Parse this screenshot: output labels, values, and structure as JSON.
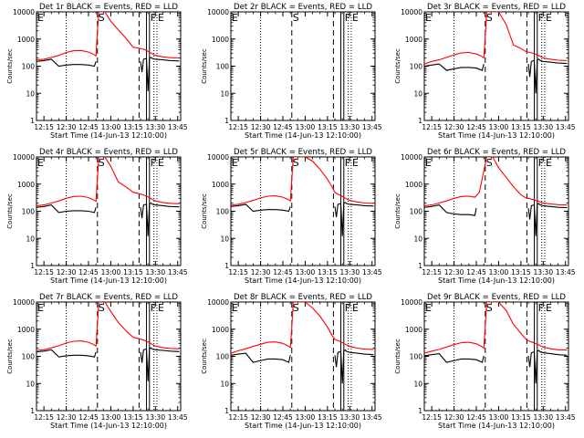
{
  "chart_data": {
    "type": "line",
    "ylabel": "Counts/sec",
    "xlabel": "Start Time (14-Jun-13 12:10:00)",
    "x_unit": "minutes after 12:10:00",
    "xlim": [
      0,
      97
    ],
    "ylim": [
      1,
      10000
    ],
    "yscale": "log",
    "xticks": [
      {
        "v": 5,
        "label": "12:15"
      },
      {
        "v": 20,
        "label": "12:30"
      },
      {
        "v": 35,
        "label": "12:45"
      },
      {
        "v": 50,
        "label": "13:00"
      },
      {
        "v": 65,
        "label": "13:15"
      },
      {
        "v": 80,
        "label": "13:30"
      },
      {
        "v": 95,
        "label": "13:45"
      }
    ],
    "yticks": [
      {
        "v": 1,
        "label": "1"
      },
      {
        "v": 10,
        "label": "10"
      },
      {
        "v": 100,
        "label": "100"
      },
      {
        "v": 1000,
        "label": "1000"
      },
      {
        "v": 10000,
        "label": "10000"
      }
    ],
    "markers": [
      {
        "label": "E",
        "x": 0,
        "style": "dotted"
      },
      {
        "label": "",
        "x": 20,
        "style": "dotted"
      },
      {
        "label": "S",
        "x": 41,
        "style": "dashed"
      },
      {
        "label": "",
        "x": 69,
        "style": "dashed"
      },
      {
        "label": "",
        "x": 74,
        "style": "solid"
      },
      {
        "label": "F",
        "x": 76,
        "style": "solid"
      },
      {
        "label": "",
        "x": 79,
        "style": "dotted"
      },
      {
        "label": "E",
        "x": 81,
        "style": "dotted"
      }
    ],
    "panels": [
      {
        "title": "Det 1r BLACK = Events, RED = LLD",
        "series": [
          {
            "color": "#ff0000",
            "x": [
              0,
              5,
              10,
              15,
              20,
              25,
              30,
              35,
              38,
              40,
              41,
              42,
              44,
              46,
              50,
              55,
              60,
              65,
              68,
              70,
              72,
              74,
              76,
              78,
              80,
              85,
              90,
              96
            ],
            "y": [
              170,
              180,
              210,
              250,
              320,
              370,
              380,
              330,
              280,
              240,
              2000,
              10000,
              10000,
              10000,
              4500,
              2200,
              1100,
              500,
              470,
              440,
              420,
              380,
              330,
              280,
              250,
              220,
              205,
              200
            ]
          },
          {
            "color": "#000000",
            "x": [
              0,
              5,
              10,
              15,
              20,
              25,
              30,
              35,
              39,
              40,
              41,
              69,
              70,
              71,
              72,
              74,
              75,
              76,
              77,
              78,
              80,
              85,
              90,
              96
            ],
            "y": [
              150,
              160,
              180,
              100,
              110,
              115,
              115,
              110,
              100,
              150,
              null,
              null,
              150,
              60,
              180,
              190,
              12,
              200,
              210,
              190,
              180,
              170,
              160,
              155
            ]
          }
        ]
      },
      {
        "title": "Det 2r BLACK = Events, RED = LLD",
        "series": [
          {
            "color": "#ff0000",
            "x": [],
            "y": []
          },
          {
            "color": "#000000",
            "x": [],
            "y": []
          }
        ]
      },
      {
        "title": "Det 3r BLACK = Events, RED = LLD",
        "series": [
          {
            "color": "#ff0000",
            "x": [
              0,
              5,
              10,
              15,
              20,
              25,
              30,
              35,
              38,
              40,
              41,
              42,
              46,
              50,
              55,
              60,
              65,
              68,
              70,
              72,
              74,
              76,
              78,
              80,
              85,
              90,
              96
            ],
            "y": [
              120,
              150,
              170,
              210,
              260,
              310,
              320,
              280,
              240,
              200,
              1200,
              10000,
              10000,
              10000,
              3500,
              600,
              450,
              350,
              330,
              310,
              290,
              260,
              230,
              200,
              180,
              165,
              160
            ]
          },
          {
            "color": "#000000",
            "x": [
              0,
              5,
              10,
              15,
              20,
              25,
              30,
              35,
              39,
              40,
              41,
              69,
              70,
              71,
              72,
              74,
              75,
              76,
              77,
              78,
              80,
              85,
              90,
              96
            ],
            "y": [
              100,
              110,
              120,
              70,
              80,
              90,
              90,
              85,
              70,
              120,
              null,
              null,
              120,
              40,
              150,
              160,
              10,
              170,
              180,
              160,
              150,
              140,
              130,
              125
            ]
          }
        ]
      },
      {
        "title": "Det 4r BLACK = Events, RED = LLD",
        "series": [
          {
            "color": "#ff0000",
            "x": [
              0,
              5,
              10,
              15,
              20,
              25,
              30,
              35,
              38,
              40,
              41,
              42,
              44,
              46,
              50,
              55,
              60,
              65,
              68,
              70,
              72,
              74,
              76,
              78,
              80,
              85,
              90,
              96
            ],
            "y": [
              160,
              170,
              200,
              240,
              300,
              350,
              360,
              320,
              270,
              230,
              1800,
              10000,
              10000,
              10000,
              4500,
              1200,
              800,
              500,
              460,
              430,
              400,
              360,
              320,
              270,
              240,
              210,
              195,
              190
            ]
          },
          {
            "color": "#000000",
            "x": [
              0,
              5,
              10,
              15,
              20,
              25,
              30,
              35,
              39,
              40,
              41,
              69,
              70,
              71,
              72,
              74,
              75,
              76,
              77,
              78,
              80,
              85,
              90,
              96
            ],
            "y": [
              140,
              150,
              170,
              90,
              100,
              105,
              105,
              100,
              90,
              140,
              null,
              null,
              140,
              55,
              170,
              180,
              12,
              190,
              200,
              180,
              170,
              160,
              150,
              145
            ]
          }
        ]
      },
      {
        "title": "Det 5r BLACK = Events, RED = LLD",
        "series": [
          {
            "color": "#ff0000",
            "x": [
              0,
              5,
              10,
              15,
              20,
              25,
              30,
              35,
              38,
              40,
              41,
              42,
              46,
              50,
              55,
              60,
              65,
              68,
              70,
              72,
              74,
              76,
              78,
              80,
              85,
              90,
              96
            ],
            "y": [
              170,
              180,
              210,
              250,
              310,
              360,
              370,
              330,
              280,
              240,
              1500,
              10000,
              10000,
              10000,
              7000,
              3500,
              1500,
              800,
              500,
              420,
              380,
              330,
              280,
              250,
              220,
              200,
              195
            ]
          },
          {
            "color": "#000000",
            "x": [
              0,
              5,
              10,
              15,
              20,
              25,
              30,
              35,
              39,
              40,
              41,
              69,
              70,
              71,
              72,
              74,
              75,
              76,
              77,
              78,
              80,
              85,
              90,
              96
            ],
            "y": [
              150,
              160,
              180,
              100,
              110,
              115,
              115,
              110,
              100,
              150,
              null,
              null,
              150,
              60,
              180,
              190,
              12,
              200,
              210,
              190,
              180,
              170,
              160,
              155
            ]
          }
        ]
      },
      {
        "title": "Det 6r BLACK = Events, RED = LLD",
        "series": [
          {
            "color": "#ff0000",
            "x": [
              0,
              5,
              10,
              15,
              20,
              25,
              30,
              34,
              37,
              40,
              42,
              44,
              46,
              50,
              55,
              60,
              65,
              68,
              70,
              72,
              74,
              76,
              78,
              80,
              85,
              90,
              96
            ],
            "y": [
              160,
              170,
              200,
              240,
              300,
              350,
              360,
              330,
              500,
              3000,
              10000,
              10000,
              10000,
              4000,
              1800,
              800,
              400,
              320,
              300,
              280,
              260,
              240,
              220,
              200,
              185,
              175,
              170
            ]
          },
          {
            "color": "#000000",
            "x": [
              0,
              5,
              10,
              15,
              20,
              25,
              30,
              34,
              35,
              69,
              70,
              71,
              72,
              74,
              75,
              76,
              77,
              78,
              80,
              85,
              90,
              96
            ],
            "y": [
              140,
              150,
              170,
              90,
              80,
              75,
              75,
              70,
              130,
              null,
              130,
              50,
              160,
              170,
              12,
              180,
              190,
              170,
              160,
              150,
              140,
              135
            ]
          }
        ]
      },
      {
        "title": "Det 7r BLACK = Events, RED = LLD",
        "series": [
          {
            "color": "#ff0000",
            "x": [
              0,
              5,
              10,
              15,
              20,
              25,
              30,
              35,
              38,
              40,
              41,
              42,
              44,
              46,
              50,
              55,
              60,
              65,
              68,
              70,
              72,
              74,
              76,
              78,
              80,
              85,
              90,
              96
            ],
            "y": [
              165,
              175,
              205,
              245,
              310,
              360,
              370,
              330,
              280,
              240,
              1700,
              10000,
              10000,
              10000,
              4500,
              1800,
              900,
              500,
              460,
              430,
              400,
              360,
              320,
              270,
              240,
              210,
              195,
              190
            ]
          },
          {
            "color": "#000000",
            "x": [
              0,
              5,
              10,
              15,
              20,
              25,
              30,
              35,
              39,
              40,
              41,
              69,
              70,
              71,
              72,
              74,
              75,
              76,
              77,
              78,
              80,
              85,
              90,
              96
            ],
            "y": [
              145,
              155,
              175,
              95,
              105,
              110,
              110,
              105,
              95,
              145,
              null,
              null,
              145,
              58,
              175,
              185,
              12,
              195,
              205,
              185,
              175,
              165,
              155,
              150
            ]
          }
        ]
      },
      {
        "title": "Det 8r BLACK = Events, RED = LLD",
        "series": [
          {
            "color": "#ff0000",
            "x": [
              0,
              5,
              10,
              15,
              20,
              25,
              30,
              35,
              38,
              40,
              41,
              42,
              46,
              50,
              55,
              60,
              65,
              68,
              70,
              72,
              74,
              76,
              78,
              80,
              85,
              90,
              96
            ],
            "y": [
              130,
              160,
              190,
              230,
              280,
              330,
              340,
              300,
              250,
              210,
              1200,
              10000,
              10000,
              10000,
              6000,
              3000,
              1200,
              600,
              420,
              380,
              340,
              300,
              260,
              230,
              200,
              185,
              180
            ]
          },
          {
            "color": "#000000",
            "x": [
              0,
              5,
              10,
              15,
              20,
              25,
              30,
              35,
              39,
              40,
              41,
              69,
              70,
              71,
              72,
              74,
              75,
              76,
              77,
              78,
              80,
              85,
              90,
              96
            ],
            "y": [
              110,
              120,
              130,
              60,
              70,
              80,
              80,
              75,
              60,
              110,
              null,
              null,
              110,
              40,
              140,
              150,
              10,
              160,
              170,
              150,
              140,
              130,
              120,
              115
            ]
          }
        ]
      },
      {
        "title": "Det 9r BLACK = Events, RED = LLD",
        "series": [
          {
            "color": "#ff0000",
            "x": [
              0,
              5,
              10,
              15,
              20,
              25,
              30,
              35,
              38,
              40,
              41,
              42,
              46,
              50,
              55,
              60,
              65,
              68,
              70,
              72,
              74,
              76,
              78,
              80,
              85,
              90,
              96
            ],
            "y": [
              130,
              155,
              180,
              220,
              270,
              320,
              330,
              290,
              240,
              200,
              1300,
              10000,
              10000,
              10000,
              5000,
              1500,
              700,
              450,
              380,
              340,
              310,
              280,
              250,
              220,
              190,
              175,
              170
            ]
          },
          {
            "color": "#000000",
            "x": [
              0,
              5,
              10,
              15,
              20,
              25,
              30,
              35,
              39,
              40,
              41,
              69,
              70,
              71,
              72,
              74,
              75,
              76,
              77,
              78,
              80,
              85,
              90,
              96
            ],
            "y": [
              105,
              115,
              125,
              60,
              70,
              80,
              80,
              75,
              60,
              105,
              null,
              null,
              105,
              40,
              135,
              145,
              10,
              155,
              165,
              145,
              135,
              125,
              115,
              110
            ]
          }
        ]
      }
    ]
  }
}
